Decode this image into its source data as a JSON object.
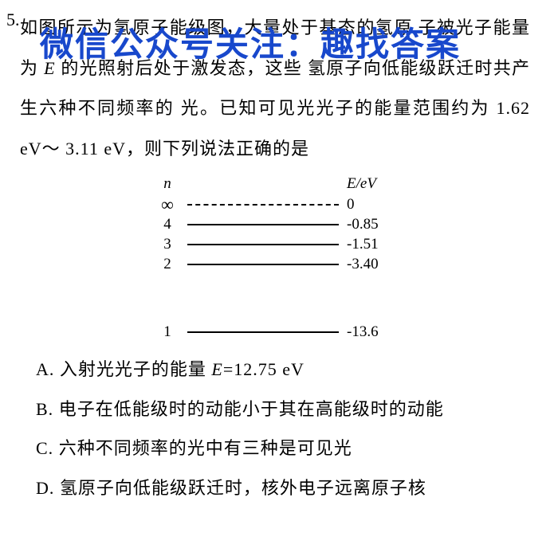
{
  "question": {
    "number": "5.",
    "text_line1": "如图所示为氢原子能级图，大量处于基态的氢原",
    "text_line2_pre": "子被光子能量为 ",
    "text_line2_E": "E",
    "text_line2_post": " 的光照射后处于激发态，这些",
    "text_line3": "氢原子向低能级跃迁时共产生六种不同频率的",
    "text_line4": "光。已知可见光光子的能量范围约为 1.62 eV～",
    "text_line5": "3.11 eV，则下列说法正确的是"
  },
  "watermark": {
    "text": "微信公众号关注：趣找答案",
    "color": "#1848cc",
    "fontsize": 42
  },
  "diagram": {
    "header_n": "n",
    "header_E": "E/eV",
    "levels": [
      {
        "n": "∞",
        "energy": "0",
        "dashed": true
      },
      {
        "n": "4",
        "energy": "-0.85",
        "dashed": false
      },
      {
        "n": "3",
        "energy": "-1.51",
        "dashed": false
      },
      {
        "n": "2",
        "energy": "-3.40",
        "dashed": false
      }
    ],
    "level1": {
      "n": "1",
      "energy": "-13.6"
    }
  },
  "options": {
    "A": {
      "label": "A.",
      "text_pre": " 入射光光子的能量 ",
      "formula": "E=12.75 eV"
    },
    "B": {
      "label": "B.",
      "text": " 电子在低能级时的动能小于其在高能级时的动能"
    },
    "C": {
      "label": "C.",
      "text": " 六种不同频率的光中有三种是可见光"
    },
    "D": {
      "label": "D.",
      "text": " 氢原子向低能级跃迁时，核外电子远离原子核"
    }
  },
  "colors": {
    "background": "#ffffff",
    "text": "#000000",
    "watermark": "#1848cc"
  }
}
